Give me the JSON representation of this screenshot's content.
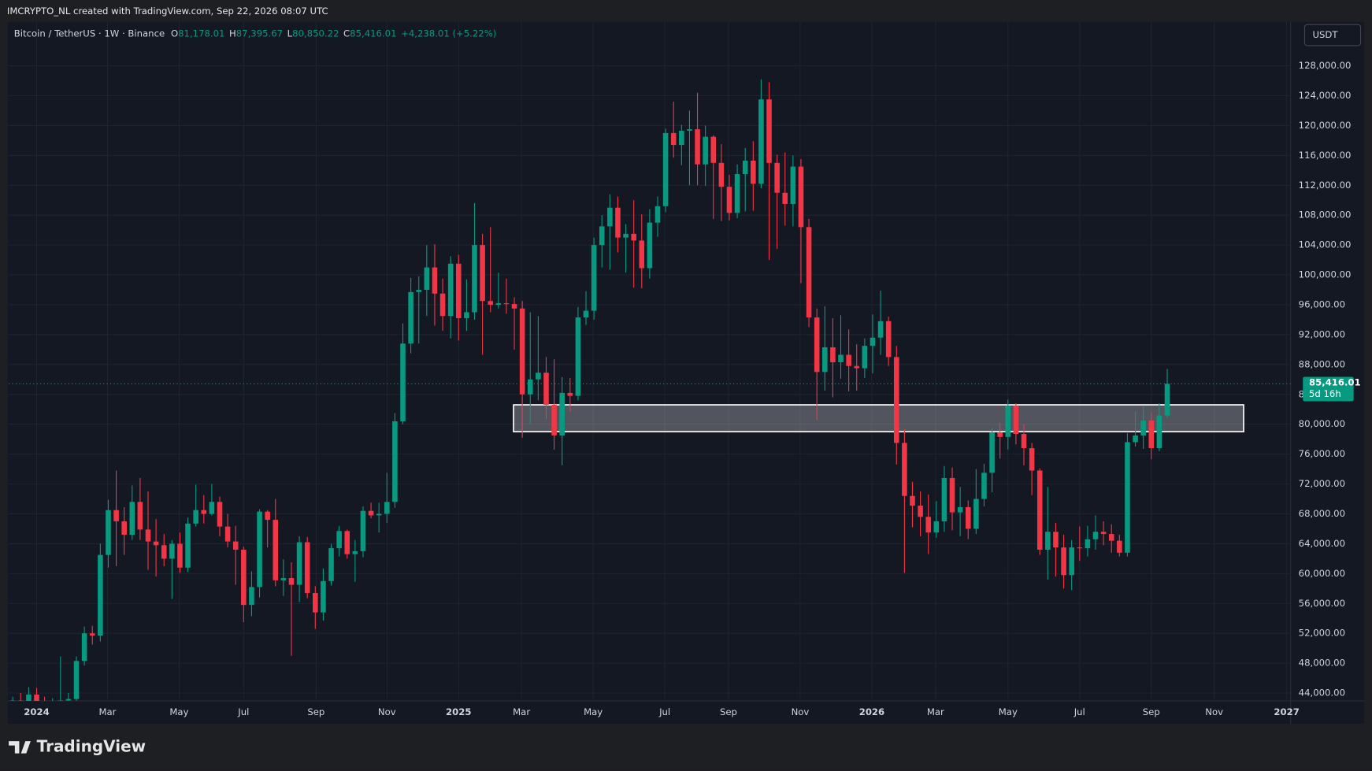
{
  "header": {
    "credit": "IMCRYPTO_NL created with TradingView.com, Sep 22, 2026 08:07 UTC"
  },
  "footer": {
    "brand": "TradingView"
  },
  "chart_data": {
    "type": "candlestick",
    "symbol": "Bitcoin / TetherUS · 1W · Binance",
    "legend": [
      {
        "key": "O",
        "value": "81,178.01"
      },
      {
        "key": "H",
        "value": "87,395.67"
      },
      {
        "key": "L",
        "value": "80,850.22"
      },
      {
        "key": "C",
        "value": "85,416.01"
      }
    ],
    "change": "+4,238.01 (+5.22%)",
    "currency": "USDT",
    "last_price_label": "85,416.01",
    "countdown": "5d 16h",
    "up_color": "#089981",
    "down_color": "#f23645",
    "grid": true,
    "xlim": [
      -0.5,
      160.5
    ],
    "ylim": [
      42950,
      133870
    ],
    "xticks": [
      {
        "value": 3,
        "label": "2024"
      },
      {
        "value": 11.9,
        "label": "Mar"
      },
      {
        "value": 20.9,
        "label": "May"
      },
      {
        "value": 29,
        "label": "Jul"
      },
      {
        "value": 38.1,
        "label": "Sep"
      },
      {
        "value": 47,
        "label": "Nov"
      },
      {
        "value": 56,
        "label": "2025"
      },
      {
        "value": 63.9,
        "label": "Mar"
      },
      {
        "value": 72.9,
        "label": "May"
      },
      {
        "value": 81.9,
        "label": "Jul"
      },
      {
        "value": 89.9,
        "label": "Sep"
      },
      {
        "value": 98.9,
        "label": "Nov"
      },
      {
        "value": 107.9,
        "label": "2026"
      },
      {
        "value": 115.9,
        "label": "Mar"
      },
      {
        "value": 125,
        "label": "May"
      },
      {
        "value": 134,
        "label": "Jul"
      },
      {
        "value": 143,
        "label": "Sep"
      },
      {
        "value": 150.9,
        "label": "Nov"
      },
      {
        "value": 160,
        "label": "2027"
      }
    ],
    "yticks": [
      {
        "value": 44000,
        "label": "44,000.00"
      },
      {
        "value": 48000,
        "label": "48,000.00"
      },
      {
        "value": 52000,
        "label": "52,000.00"
      },
      {
        "value": 56000,
        "label": "56,000.00"
      },
      {
        "value": 60000,
        "label": "60,000.00"
      },
      {
        "value": 64000,
        "label": "64,000.00"
      },
      {
        "value": 68000,
        "label": "68,000.00"
      },
      {
        "value": 72000,
        "label": "72,000.00"
      },
      {
        "value": 76000,
        "label": "76,000.00"
      },
      {
        "value": 80000,
        "label": "80,000.00"
      },
      {
        "value": 84000,
        "label": "84,000.00"
      },
      {
        "value": 88000,
        "label": "88,000.00"
      },
      {
        "value": 92000,
        "label": "92,000.00"
      },
      {
        "value": 96000,
        "label": "96,000.00"
      },
      {
        "value": 100000,
        "label": "100,000.00"
      },
      {
        "value": 104000,
        "label": "104,000.00"
      },
      {
        "value": 108000,
        "label": "108,000.00"
      },
      {
        "value": 112000,
        "label": "112,000.00"
      },
      {
        "value": 116000,
        "label": "116,000.00"
      },
      {
        "value": 120000,
        "label": "120,000.00"
      },
      {
        "value": 124000,
        "label": "124,000.00"
      },
      {
        "value": 128000,
        "label": "128,000.00"
      }
    ],
    "zone": {
      "x": [
        62.9,
        154.6
      ],
      "y": [
        79000,
        82600
      ]
    },
    "ohlc": [
      [
        41600,
        43500,
        40500,
        43000
      ],
      [
        43000,
        44000,
        41000,
        42300
      ],
      [
        42300,
        44800,
        41600,
        43800
      ],
      [
        43800,
        44700,
        41000,
        42000
      ],
      [
        42000,
        43500,
        38500,
        41700
      ],
      [
        41700,
        43300,
        41300,
        42600
      ],
      [
        42600,
        48900,
        42200,
        43000
      ],
      [
        43000,
        44000,
        42500,
        43200
      ],
      [
        43200,
        48900,
        42800,
        48300
      ],
      [
        48300,
        52900,
        47700,
        52000
      ],
      [
        52000,
        53000,
        50500,
        51700
      ],
      [
        51700,
        64000,
        50900,
        62500
      ],
      [
        62500,
        69900,
        60800,
        68500
      ],
      [
        68500,
        73800,
        61000,
        67000
      ],
      [
        67000,
        68900,
        62500,
        65200
      ],
      [
        65200,
        71800,
        64500,
        69600
      ],
      [
        69600,
        72800,
        64500,
        65900
      ],
      [
        65900,
        71000,
        60500,
        64300
      ],
      [
        64300,
        67300,
        59600,
        63800
      ],
      [
        63800,
        65300,
        61000,
        62000
      ],
      [
        62000,
        64500,
        56600,
        64000
      ],
      [
        64000,
        65500,
        60100,
        60800
      ],
      [
        60800,
        67500,
        60200,
        66700
      ],
      [
        66700,
        71900,
        66300,
        68500
      ],
      [
        68500,
        70500,
        66700,
        68000
      ],
      [
        68000,
        72000,
        67800,
        69600
      ],
      [
        69600,
        70300,
        65000,
        66300
      ],
      [
        66300,
        68000,
        63500,
        64300
      ],
      [
        64300,
        66400,
        58500,
        63200
      ],
      [
        63200,
        63600,
        53500,
        55800
      ],
      [
        55800,
        60300,
        54300,
        58200
      ],
      [
        58200,
        68600,
        56800,
        68300
      ],
      [
        68300,
        68500,
        63500,
        67200
      ],
      [
        67200,
        70000,
        58300,
        59100
      ],
      [
        59100,
        61900,
        57000,
        59400
      ],
      [
        59400,
        61500,
        49000,
        58500
      ],
      [
        58500,
        65000,
        56200,
        64200
      ],
      [
        64200,
        64900,
        56700,
        57400
      ],
      [
        57400,
        58300,
        52600,
        54800
      ],
      [
        54800,
        60700,
        53700,
        59000
      ],
      [
        59000,
        64000,
        58400,
        63400
      ],
      [
        63400,
        66400,
        62300,
        65700
      ],
      [
        65700,
        65900,
        62000,
        62600
      ],
      [
        62600,
        64500,
        58900,
        63000
      ],
      [
        63000,
        69000,
        62200,
        68400
      ],
      [
        68400,
        69500,
        67400,
        67800
      ],
      [
        67800,
        69500,
        65500,
        68000
      ],
      [
        68000,
        73500,
        66800,
        69600
      ],
      [
        69600,
        81500,
        68800,
        80400
      ],
      [
        80400,
        93500,
        80000,
        90800
      ],
      [
        90800,
        99600,
        89500,
        97700
      ],
      [
        97700,
        99800,
        90800,
        98000
      ],
      [
        98000,
        104000,
        94500,
        101000
      ],
      [
        101000,
        104100,
        93200,
        97500
      ],
      [
        97500,
        99500,
        92500,
        94500
      ],
      [
        94500,
        102500,
        91500,
        101500
      ],
      [
        101500,
        102700,
        91200,
        94200
      ],
      [
        94200,
        99400,
        92500,
        95000
      ],
      [
        95000,
        109600,
        94000,
        104000
      ],
      [
        104000,
        105500,
        89300,
        96500
      ],
      [
        96500,
        106400,
        95000,
        96000
      ],
      [
        96000,
        100300,
        95500,
        96200
      ],
      [
        96200,
        99500,
        94800,
        96100
      ],
      [
        96100,
        97000,
        90000,
        95500
      ],
      [
        95500,
        96500,
        78200,
        84000
      ],
      [
        84000,
        95000,
        80000,
        86000
      ],
      [
        86000,
        94500,
        83200,
        86900
      ],
      [
        86900,
        89000,
        80700,
        82600
      ],
      [
        82600,
        88700,
        76600,
        78500
      ],
      [
        78500,
        86300,
        74500,
        84200
      ],
      [
        84200,
        86200,
        81700,
        83800
      ],
      [
        83800,
        95700,
        83200,
        94300
      ],
      [
        94300,
        97800,
        93300,
        95200
      ],
      [
        95200,
        105000,
        94000,
        104000
      ],
      [
        104000,
        108000,
        101000,
        106500
      ],
      [
        106500,
        110800,
        100700,
        109000
      ],
      [
        109000,
        110500,
        103000,
        105000
      ],
      [
        105000,
        106800,
        100300,
        105500
      ],
      [
        105500,
        110000,
        98300,
        104600
      ],
      [
        104600,
        108100,
        98200,
        100900
      ],
      [
        100900,
        108800,
        99500,
        107000
      ],
      [
        107000,
        110500,
        105100,
        109200
      ],
      [
        109200,
        119600,
        108400,
        119000
      ],
      [
        119000,
        123200,
        115700,
        117400
      ],
      [
        117400,
        120100,
        114700,
        119300
      ],
      [
        119300,
        122000,
        112000,
        119500
      ],
      [
        119500,
        124400,
        112000,
        114800
      ],
      [
        114800,
        120000,
        111900,
        118500
      ],
      [
        118500,
        118700,
        107500,
        115000
      ],
      [
        115000,
        117500,
        107200,
        111800
      ],
      [
        111800,
        113400,
        107300,
        108300
      ],
      [
        108300,
        114800,
        107600,
        113500
      ],
      [
        113500,
        117000,
        108500,
        115300
      ],
      [
        115300,
        117900,
        108600,
        112200
      ],
      [
        112200,
        126200,
        111600,
        123500
      ],
      [
        123500,
        125800,
        102000,
        115000
      ],
      [
        115000,
        116100,
        103500,
        111000
      ],
      [
        111000,
        116400,
        106600,
        109500
      ],
      [
        109500,
        116000,
        106500,
        114500
      ],
      [
        114500,
        115500,
        98900,
        106400
      ],
      [
        106400,
        107500,
        93000,
        94300
      ],
      [
        94300,
        95500,
        80600,
        87000
      ],
      [
        87000,
        95800,
        84500,
        90300
      ],
      [
        90300,
        94200,
        83600,
        88300
      ],
      [
        88300,
        94600,
        86100,
        89300
      ],
      [
        89300,
        92700,
        84400,
        87800
      ],
      [
        87800,
        90700,
        84500,
        87500
      ],
      [
        87500,
        91500,
        86200,
        90500
      ],
      [
        90500,
        94700,
        86800,
        91600
      ],
      [
        91600,
        97900,
        89300,
        93800
      ],
      [
        93800,
        94400,
        87800,
        89000
      ],
      [
        89000,
        90500,
        74600,
        77500
      ],
      [
        77500,
        79300,
        60100,
        70400
      ],
      [
        70400,
        72300,
        66200,
        69100
      ],
      [
        69100,
        71000,
        65000,
        67600
      ],
      [
        67600,
        70600,
        62600,
        65500
      ],
      [
        65500,
        69700,
        64800,
        67000
      ],
      [
        67000,
        74400,
        65600,
        72800
      ],
      [
        72800,
        74200,
        65800,
        68200
      ],
      [
        68200,
        71600,
        65000,
        68900
      ],
      [
        68900,
        69800,
        64600,
        66000
      ],
      [
        66000,
        74000,
        65300,
        70000
      ],
      [
        70000,
        74700,
        69000,
        73500
      ],
      [
        73500,
        79500,
        70900,
        78900
      ],
      [
        78900,
        80200,
        75400,
        78300
      ],
      [
        78300,
        83300,
        76600,
        82500
      ],
      [
        82500,
        82800,
        77300,
        78700
      ],
      [
        78700,
        80000,
        74500,
        76800
      ],
      [
        76800,
        77500,
        70500,
        73800
      ],
      [
        73800,
        74100,
        62500,
        63200
      ],
      [
        63200,
        71600,
        59200,
        65600
      ],
      [
        65600,
        66800,
        59600,
        63500
      ],
      [
        63500,
        65200,
        58000,
        59800
      ],
      [
        59800,
        64500,
        57800,
        63500
      ],
      [
        63500,
        66300,
        61700,
        63400
      ],
      [
        63400,
        66400,
        62300,
        64600
      ],
      [
        64600,
        67800,
        63200,
        65600
      ],
      [
        65600,
        67000,
        63800,
        65300
      ],
      [
        65300,
        66600,
        62800,
        64400
      ],
      [
        64400,
        65200,
        62300,
        62800
      ],
      [
        62800,
        78800,
        62300,
        77600
      ],
      [
        77600,
        81700,
        77000,
        78500
      ],
      [
        78500,
        82400,
        76700,
        80500
      ],
      [
        80500,
        81500,
        75300,
        76800
      ],
      [
        76800,
        82800,
        76400,
        81178.01
      ],
      [
        81178.01,
        87395.67,
        80850.22,
        85416.01
      ]
    ]
  }
}
